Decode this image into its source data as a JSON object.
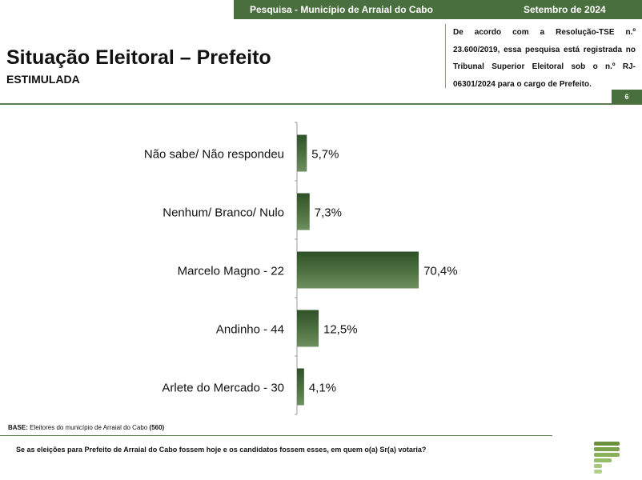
{
  "header": {
    "survey": "Pesquisa - Município de Arraial do Cabo",
    "date": "Setembro de 2024"
  },
  "title": "Situação Eleitoral – Prefeito",
  "subtitle": "ESTIMULADA",
  "notice": "De acordo com a Resolução-TSE n.º 23.600/2019, essa pesquisa está registrada no Tribunal Superior Eleitoral sob o n.º RJ-06301/2024 para o cargo de Prefeito.",
  "page_number": "6",
  "base": {
    "label": "BASE:",
    "text": " Eleitores do município de Arraial do Cabo ",
    "count": "(560)"
  },
  "question": "Se as eleições para Prefeito de Arraial do Cabo fossem hoje e os candidatos fossem esses, em quem o(a) Sr(a) votaria?",
  "colors": {
    "accent": "#4a6f3e",
    "bar": "#4f7242"
  },
  "chart_data": {
    "type": "bar",
    "orientation": "horizontal",
    "categories": [
      "Não sabe/ Não respondeu",
      "Nenhum/ Branco/ Nulo",
      "Marcelo Magno - 22",
      "Andinho - 44",
      "Arlete do Mercado - 30"
    ],
    "values": [
      5.7,
      7.3,
      70.4,
      12.5,
      4.1
    ],
    "labels": [
      "5,7%",
      "7,3%",
      "70,4%",
      "12,5%",
      "4,1%"
    ],
    "unit": "%",
    "xlim": [
      0,
      100
    ],
    "grid": false
  }
}
